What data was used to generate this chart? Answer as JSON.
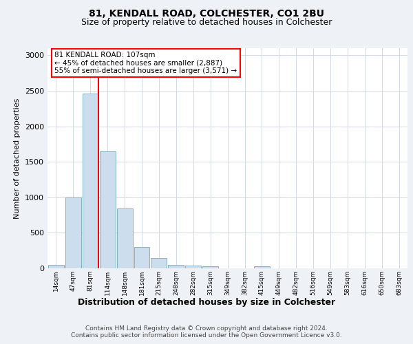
{
  "title1": "81, KENDALL ROAD, COLCHESTER, CO1 2BU",
  "title2": "Size of property relative to detached houses in Colchester",
  "xlabel": "Distribution of detached houses by size in Colchester",
  "ylabel": "Number of detached properties",
  "bar_labels": [
    "14sqm",
    "47sqm",
    "81sqm",
    "114sqm",
    "148sqm",
    "181sqm",
    "215sqm",
    "248sqm",
    "282sqm",
    "315sqm",
    "349sqm",
    "382sqm",
    "415sqm",
    "449sqm",
    "482sqm",
    "516sqm",
    "549sqm",
    "583sqm",
    "616sqm",
    "650sqm",
    "683sqm"
  ],
  "bar_values": [
    50,
    1000,
    2460,
    1650,
    840,
    300,
    150,
    50,
    40,
    30,
    0,
    0,
    30,
    0,
    0,
    0,
    0,
    0,
    0,
    0,
    0
  ],
  "bar_color": "#ccdded",
  "bar_edge_color": "#7aaabb",
  "vline_color": "red",
  "vline_bar_index": 2,
  "annotation_text": "81 KENDALL ROAD: 107sqm\n← 45% of detached houses are smaller (2,887)\n55% of semi-detached houses are larger (3,571) →",
  "annotation_box_color": "white",
  "annotation_box_edge_color": "red",
  "ylim": [
    0,
    3100
  ],
  "yticks": [
    0,
    500,
    1000,
    1500,
    2000,
    2500,
    3000
  ],
  "footer_text": "Contains HM Land Registry data © Crown copyright and database right 2024.\nContains public sector information licensed under the Open Government Licence v3.0.",
  "bg_color": "#eef2f7",
  "plot_bg_color": "#ffffff",
  "grid_color": "#c8d4e0"
}
